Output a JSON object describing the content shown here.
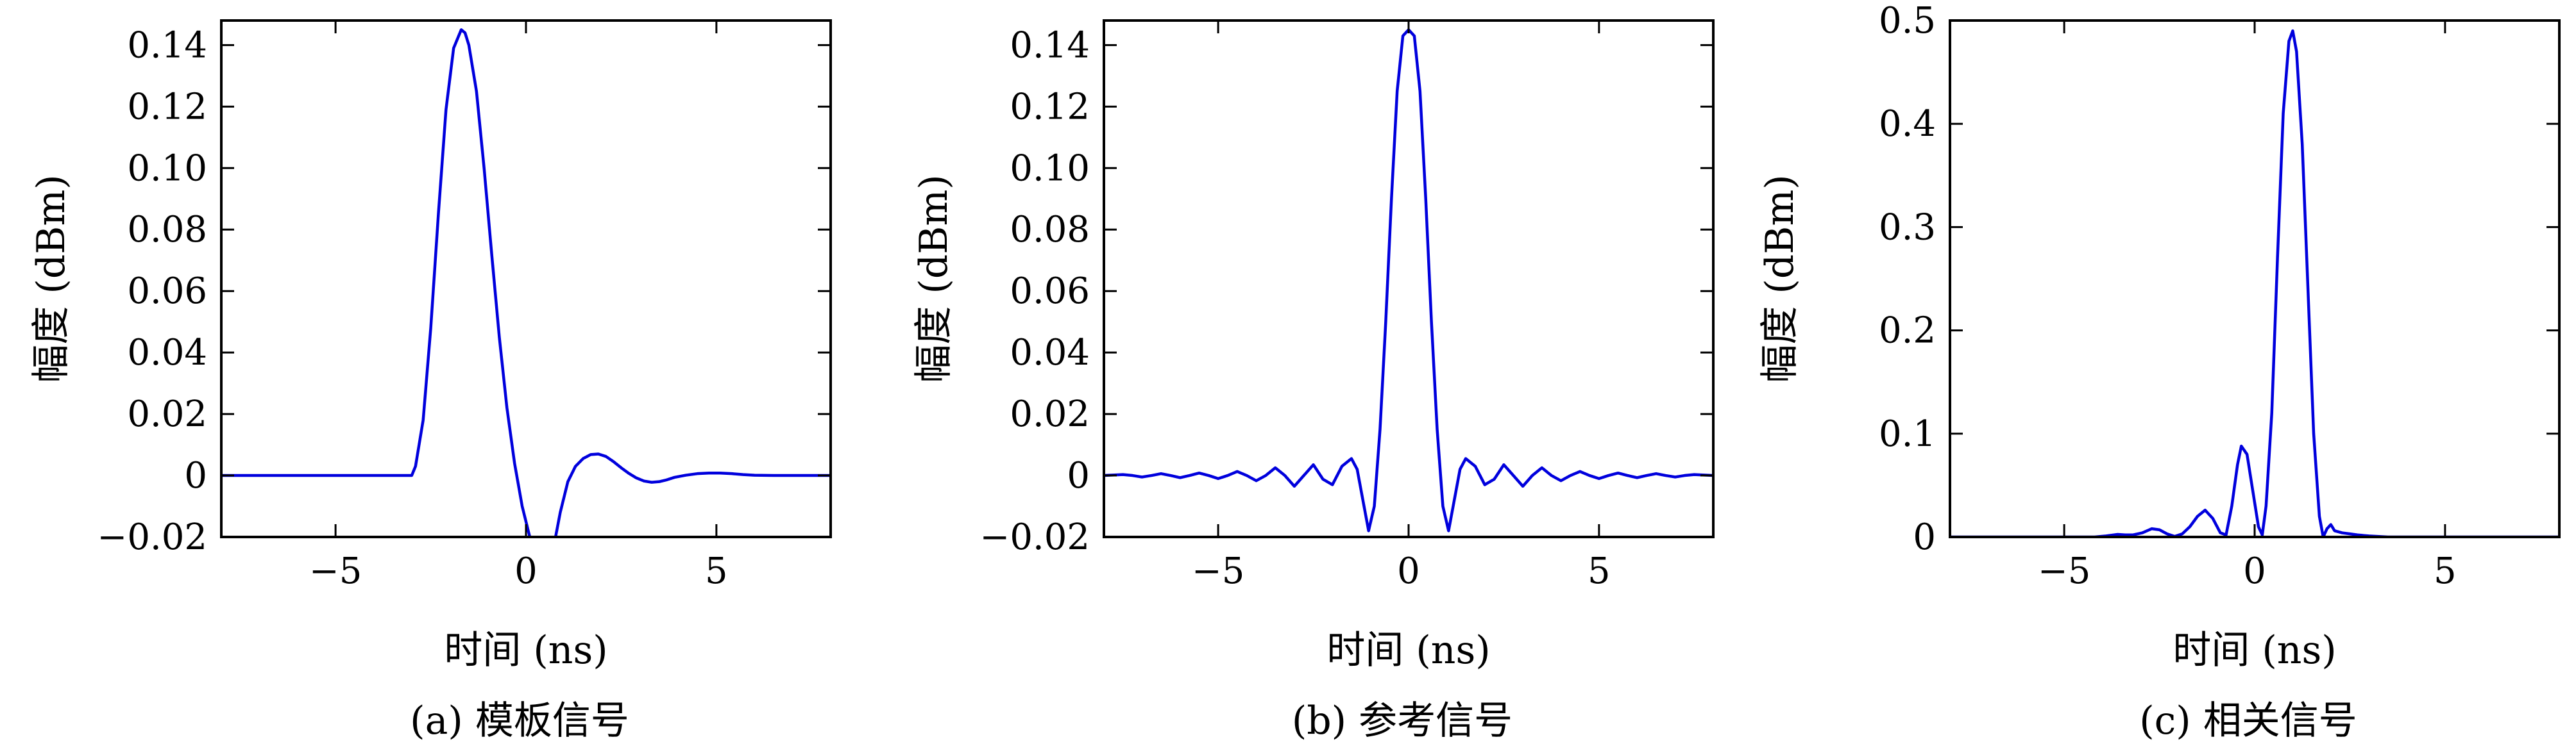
{
  "chart_data": [
    {
      "type": "line",
      "caption": "(a) 模板信号",
      "xlabel": "时间 (ns)",
      "ylabel": "幅度 (dBm)",
      "xlim": [
        -8,
        8
      ],
      "ylim": [
        -0.02,
        0.148
      ],
      "xticks": [
        -5,
        0,
        5
      ],
      "xtick_labels": [
        "−5",
        "0",
        "5"
      ],
      "yticks": [
        -0.02,
        0,
        0.02,
        0.04,
        0.06,
        0.08,
        0.1,
        0.12,
        0.14
      ],
      "ytick_labels": [
        "−0.02",
        "0",
        "0.02",
        "0.04",
        "0.06",
        "0.08",
        "0.10",
        "0.12",
        "0.14"
      ],
      "grid": false,
      "color": "#0000dd",
      "series": [
        {
          "x": [
            -8,
            -3.0,
            -2.9,
            -2.7,
            -2.5,
            -2.3,
            -2.1,
            -1.9,
            -1.7,
            -1.6,
            -1.5,
            -1.3,
            -1.1,
            -0.9,
            -0.7,
            -0.5,
            -0.3,
            -0.1,
            0.1,
            0.3,
            0.5,
            0.7,
            0.9,
            1.1,
            1.3,
            1.5,
            1.7,
            1.9,
            2.1,
            2.3,
            2.5,
            2.7,
            2.9,
            3.1,
            3.3,
            3.5,
            3.7,
            3.9,
            4.2,
            4.5,
            4.8,
            5.1,
            5.4,
            5.7,
            6.0,
            6.5,
            7.0,
            8.0
          ],
          "y": [
            0,
            0,
            0.003,
            0.018,
            0.048,
            0.085,
            0.119,
            0.139,
            0.145,
            0.144,
            0.14,
            0.125,
            0.1,
            0.072,
            0.045,
            0.022,
            0.004,
            -0.01,
            -0.02,
            -0.03,
            -0.032,
            -0.025,
            -0.012,
            -0.002,
            0.003,
            0.0055,
            0.0068,
            0.007,
            0.0062,
            0.0045,
            0.0025,
            0.0007,
            -0.0008,
            -0.0018,
            -0.0022,
            -0.002,
            -0.0014,
            -0.0006,
            0.0001,
            0.0006,
            0.0008,
            0.0008,
            0.0006,
            0.0003,
            0.0001,
            0,
            0,
            0
          ]
        }
      ]
    },
    {
      "type": "line",
      "caption": "(b) 参考信号",
      "xlabel": "时间 (ns)",
      "ylabel": "幅度 (dBm)",
      "xlim": [
        -8,
        8
      ],
      "ylim": [
        -0.02,
        0.148
      ],
      "xticks": [
        -5,
        0,
        5
      ],
      "xtick_labels": [
        "−5",
        "0",
        "5"
      ],
      "yticks": [
        -0.02,
        0,
        0.02,
        0.04,
        0.06,
        0.08,
        0.1,
        0.12,
        0.14
      ],
      "ytick_labels": [
        "−0.02",
        "0",
        "0.02",
        "0.04",
        "0.06",
        "0.08",
        "0.10",
        "0.12",
        "0.14"
      ],
      "grid": false,
      "color": "#0000dd",
      "series": [
        {
          "x": [
            -8,
            -7.5,
            -7.25,
            -7.0,
            -6.75,
            -6.5,
            -6.25,
            -6.0,
            -5.75,
            -5.5,
            -5.25,
            -5.0,
            -4.75,
            -4.5,
            -4.25,
            -4.0,
            -3.75,
            -3.5,
            -3.25,
            -3.0,
            -2.75,
            -2.5,
            -2.25,
            -2.0,
            -1.75,
            -1.5,
            -1.35,
            -1.2,
            -1.05,
            -0.9,
            -0.75,
            -0.6,
            -0.45,
            -0.3,
            -0.15,
            0,
            0.15,
            0.3,
            0.45,
            0.6,
            0.75,
            0.9,
            1.05,
            1.2,
            1.35,
            1.5,
            1.75,
            2.0,
            2.25,
            2.5,
            2.75,
            3.0,
            3.25,
            3.5,
            3.75,
            4.0,
            4.25,
            4.5,
            4.75,
            5.0,
            5.25,
            5.5,
            5.75,
            6.0,
            6.25,
            6.5,
            6.75,
            7.0,
            7.25,
            7.5,
            8.0
          ],
          "y": [
            0,
            0.0003,
            0,
            -0.0005,
            0,
            0.0006,
            0,
            -0.0007,
            0,
            0.0008,
            0,
            -0.001,
            0,
            0.0013,
            0,
            -0.0017,
            0,
            0.0025,
            0,
            -0.0035,
            0,
            0.0035,
            -0.0012,
            -0.003,
            0.003,
            0.0055,
            0.002,
            -0.008,
            -0.018,
            -0.01,
            0.015,
            0.05,
            0.09,
            0.125,
            0.143,
            0.145,
            0.143,
            0.125,
            0.09,
            0.05,
            0.015,
            -0.01,
            -0.018,
            -0.008,
            0.002,
            0.0055,
            0.003,
            -0.003,
            -0.0012,
            0.0035,
            0,
            -0.0035,
            0,
            0.0025,
            0,
            -0.0017,
            0,
            0.0013,
            0,
            -0.001,
            0,
            0.0008,
            0,
            -0.0007,
            0,
            0.0006,
            0,
            -0.0005,
            0,
            0.0003,
            0
          ]
        }
      ]
    },
    {
      "type": "line",
      "caption": "(c) 相关信号",
      "xlabel": "时间 (ns)",
      "ylabel": "幅度 (dBm)",
      "xlim": [
        -8,
        8
      ],
      "ylim": [
        0,
        0.5
      ],
      "xticks": [
        -5,
        0,
        5
      ],
      "xtick_labels": [
        "−5",
        "0",
        "5"
      ],
      "yticks": [
        0,
        0.1,
        0.2,
        0.3,
        0.4,
        0.5
      ],
      "ytick_labels": [
        "0",
        "0.1",
        "0.2",
        "0.3",
        "0.4",
        "0.5"
      ],
      "grid": false,
      "color": "#0000dd",
      "series": [
        {
          "x": [
            -8,
            -4.5,
            -4.2,
            -3.9,
            -3.6,
            -3.4,
            -3.2,
            -2.95,
            -2.7,
            -2.5,
            -2.3,
            -2.1,
            -1.9,
            -1.7,
            -1.5,
            -1.3,
            -1.1,
            -0.9,
            -0.75,
            -0.6,
            -0.45,
            -0.35,
            -0.2,
            -0.05,
            0.1,
            0.2,
            0.3,
            0.45,
            0.6,
            0.75,
            0.9,
            1.0,
            1.1,
            1.25,
            1.4,
            1.55,
            1.7,
            1.8,
            1.9,
            2.0,
            2.1,
            2.3,
            2.5,
            2.7,
            3.0,
            3.5,
            8.0
          ],
          "y": [
            0,
            0,
            0,
            0.001,
            0.0025,
            0.002,
            0.002,
            0.004,
            0.008,
            0.007,
            0.003,
            0.0005,
            0.003,
            0.01,
            0.02,
            0.026,
            0.018,
            0.004,
            0.002,
            0.03,
            0.07,
            0.088,
            0.08,
            0.045,
            0.01,
            0.002,
            0.03,
            0.12,
            0.27,
            0.41,
            0.48,
            0.49,
            0.47,
            0.38,
            0.24,
            0.1,
            0.02,
            0,
            0.008,
            0.012,
            0.006,
            0.004,
            0.003,
            0.002,
            0.001,
            0,
            0
          ]
        }
      ]
    }
  ]
}
